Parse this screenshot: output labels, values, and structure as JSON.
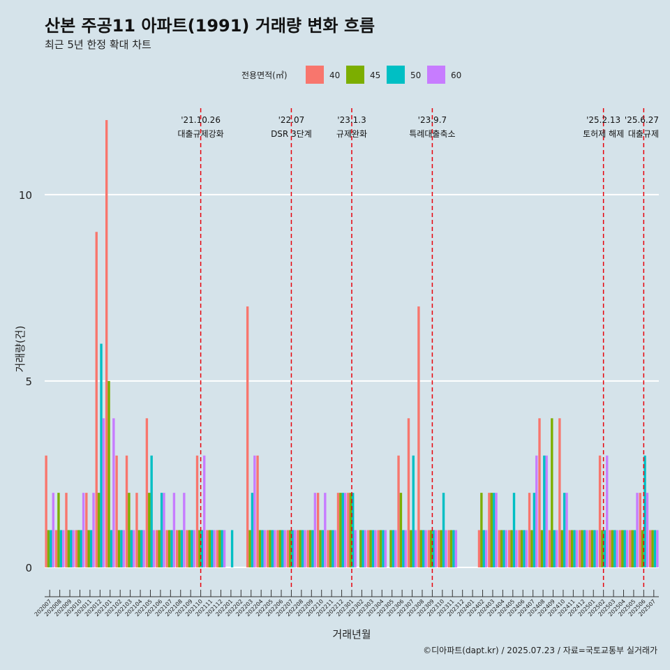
{
  "chart_data": {
    "type": "bar",
    "title": "산본 주공11 아파트(1991) 거래량 변화 흐름",
    "subtitle": "최근 5년 한정 확대 차트",
    "xlabel": "거래년월",
    "ylabel": "거래량(건)",
    "ylim": [
      0,
      12
    ],
    "yticks": [
      0,
      5,
      10
    ],
    "legend": {
      "title": "전용면적(㎡)",
      "placement": "top",
      "entries": [
        {
          "label": "40",
          "color": "#f8766d"
        },
        {
          "label": "45",
          "color": "#7cae00"
        },
        {
          "label": "50",
          "color": "#00bfc4"
        },
        {
          "label": "60",
          "color": "#c77cff"
        }
      ]
    },
    "categories": [
      "202007",
      "202008",
      "202009",
      "202010",
      "202011",
      "202012",
      "202101",
      "202102",
      "202103",
      "202104",
      "202105",
      "202106",
      "202107",
      "202108",
      "202109",
      "202110",
      "202111",
      "202112",
      "202201",
      "202202",
      "202203",
      "202204",
      "202205",
      "202206",
      "202207",
      "202208",
      "202209",
      "202210",
      "202211",
      "202212",
      "202301",
      "202302",
      "202303",
      "202304",
      "202305",
      "202306",
      "202307",
      "202308",
      "202309",
      "202310",
      "202311",
      "202312",
      "202401",
      "202402",
      "202403",
      "202404",
      "202405",
      "202406",
      "202407",
      "202408",
      "202409",
      "202410",
      "202411",
      "202412",
      "202501",
      "202502",
      "202503",
      "202504",
      "202505",
      "202506",
      "202507"
    ],
    "series": [
      {
        "name": "40",
        "values": [
          3,
          1,
          2,
          1,
          2,
          9,
          12,
          3,
          3,
          2,
          4,
          1,
          1,
          1,
          1,
          3,
          1,
          1,
          0,
          0,
          7,
          3,
          1,
          1,
          1,
          1,
          1,
          2,
          1,
          2,
          2,
          0,
          1,
          1,
          0,
          3,
          4,
          7,
          1,
          1,
          1,
          0,
          0,
          1,
          2,
          1,
          1,
          1,
          2,
          4,
          1,
          4,
          1,
          1,
          1,
          3,
          1,
          1,
          1,
          2,
          1
        ]
      },
      {
        "name": "45",
        "values": [
          1,
          2,
          1,
          1,
          1,
          2,
          5,
          1,
          2,
          1,
          2,
          1,
          1,
          1,
          1,
          1,
          1,
          1,
          0,
          0,
          1,
          1,
          1,
          1,
          1,
          1,
          1,
          1,
          1,
          2,
          2,
          1,
          1,
          1,
          1,
          2,
          1,
          1,
          1,
          1,
          1,
          0,
          0,
          2,
          2,
          1,
          1,
          1,
          1,
          1,
          4,
          1,
          1,
          1,
          1,
          1,
          1,
          1,
          1,
          1,
          1
        ]
      },
      {
        "name": "50",
        "values": [
          1,
          1,
          1,
          1,
          1,
          6,
          1,
          1,
          1,
          1,
          3,
          2,
          1,
          1,
          1,
          1,
          1,
          1,
          1,
          0,
          2,
          1,
          1,
          1,
          1,
          1,
          1,
          1,
          1,
          2,
          2,
          1,
          1,
          1,
          1,
          1,
          3,
          1,
          1,
          2,
          1,
          0,
          0,
          1,
          2,
          1,
          2,
          1,
          2,
          3,
          1,
          2,
          1,
          1,
          1,
          1,
          1,
          1,
          1,
          3,
          1
        ]
      },
      {
        "name": "60",
        "values": [
          2,
          1,
          1,
          2,
          2,
          4,
          4,
          1,
          1,
          1,
          1,
          2,
          2,
          2,
          1,
          3,
          1,
          1,
          0,
          0,
          3,
          1,
          1,
          1,
          1,
          1,
          2,
          2,
          1,
          2,
          1,
          1,
          1,
          1,
          1,
          1,
          1,
          1,
          1,
          1,
          1,
          0,
          0,
          1,
          2,
          1,
          1,
          1,
          3,
          3,
          1,
          2,
          1,
          1,
          1,
          3,
          1,
          1,
          2,
          2,
          1
        ]
      }
    ],
    "events": [
      {
        "date": "'21.10.26",
        "label": "대출규제강화",
        "category": "202110"
      },
      {
        "date": "'22.07",
        "label": "DSR 3단계",
        "category": "202207"
      },
      {
        "date": "'23.1.3",
        "label": "규제완화",
        "category": "202301"
      },
      {
        "date": "'23.9.7",
        "label": "특례대출축소",
        "category": "202309"
      },
      {
        "date": "'25.2.13",
        "label": "토허제 해제",
        "category": "202502"
      },
      {
        "date": "'25.6.27",
        "label": "대출규제",
        "category": "202506"
      }
    ],
    "caption": "©디아파트(dapt.kr) / 2025.07.23 / 자료=국토교통부 실거래가"
  }
}
